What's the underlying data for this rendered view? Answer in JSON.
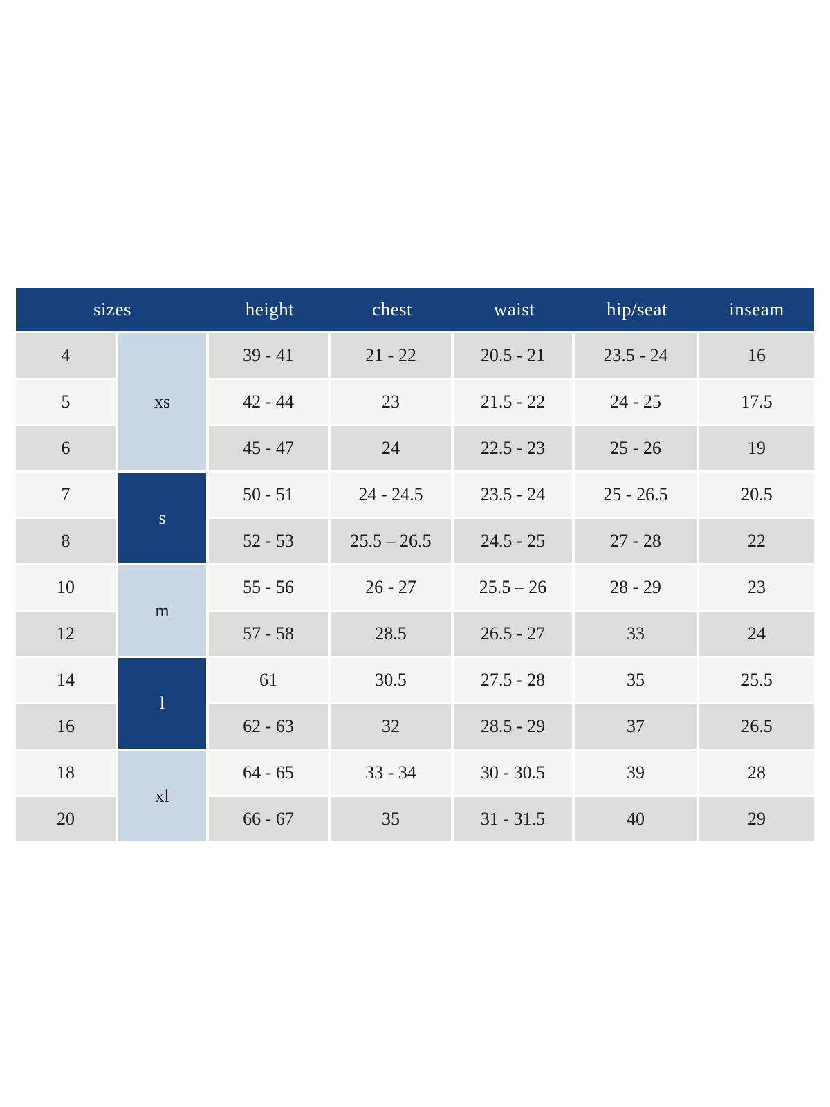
{
  "table": {
    "title": "sizes",
    "header": {
      "sizes": "sizes",
      "height": "height",
      "chest": "chest",
      "waist": "waist",
      "hip_seat": "hip/seat",
      "inseam": "inseam"
    },
    "colors": {
      "navy": "#17407d",
      "light_blue": "#c9d6e6",
      "row_gray": "#dcdcdb",
      "row_light": "#f4f4f3",
      "header_text": "#ffffff",
      "body_text": "#1c1c1c"
    },
    "groups": [
      {
        "label": "xs",
        "shade": "light",
        "rows": [
          {
            "size": "4",
            "values": [
              "39 - 41",
              "21 - 22",
              "20.5 - 21",
              "23.5 - 24",
              "16"
            ]
          },
          {
            "size": "5",
            "values": [
              "42 - 44",
              "23",
              "21.5 - 22",
              "24 - 25",
              "17.5"
            ]
          },
          {
            "size": "6",
            "values": [
              "45 - 47",
              "24",
              "22.5 - 23",
              "25 - 26",
              "19"
            ]
          }
        ]
      },
      {
        "label": "s",
        "shade": "dark",
        "rows": [
          {
            "size": "7",
            "values": [
              "50 - 51",
              "24 - 24.5",
              "23.5 - 24",
              "25 - 26.5",
              "20.5"
            ]
          },
          {
            "size": "8",
            "values": [
              "52 - 53",
              "25.5 – 26.5",
              "24.5 - 25",
              "27 - 28",
              "22"
            ]
          }
        ]
      },
      {
        "label": "m",
        "shade": "light",
        "rows": [
          {
            "size": "10",
            "values": [
              "55 - 56",
              "26 - 27",
              "25.5 – 26",
              "28 - 29",
              "23"
            ]
          },
          {
            "size": "12",
            "values": [
              "57 - 58",
              "28.5",
              "26.5 - 27",
              "33",
              "24"
            ]
          }
        ]
      },
      {
        "label": "l",
        "shade": "dark",
        "rows": [
          {
            "size": "14",
            "values": [
              "61",
              "30.5",
              "27.5 - 28",
              "35",
              "25.5"
            ]
          },
          {
            "size": "16",
            "values": [
              "62 - 63",
              "32",
              "28.5 - 29",
              "37",
              "26.5"
            ]
          }
        ]
      },
      {
        "label": "xl",
        "shade": "light",
        "rows": [
          {
            "size": "18",
            "values": [
              "64 - 65",
              "33 - 34",
              "30 - 30.5",
              "39",
              "28"
            ]
          },
          {
            "size": "20",
            "values": [
              "66 - 67",
              "35",
              "31 - 31.5",
              "40",
              "29"
            ]
          }
        ]
      }
    ]
  }
}
